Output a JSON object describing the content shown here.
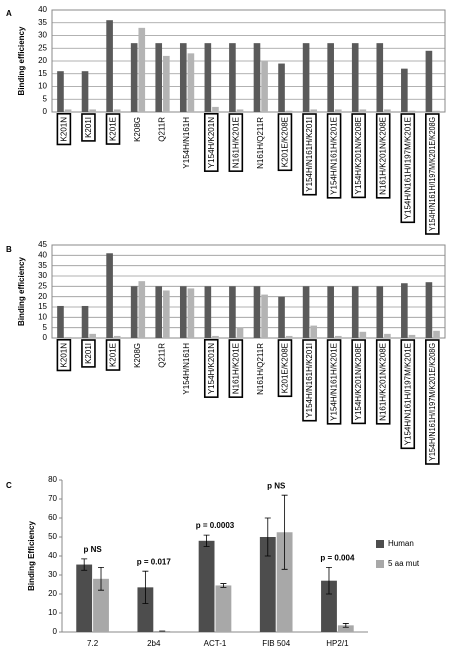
{
  "chart_data": [
    {
      "type": "bar",
      "panel_label": "A",
      "y_label": "Binding efficiency",
      "categories": [
        "K201N",
        "K201I",
        "K201E",
        "K208G",
        "Q211R",
        "Y154H/N161H",
        "Y154H/K201N",
        "N161H/K201E",
        "N161H/Q211R",
        "K201E/K208E",
        "Y154H/N161H/K201I",
        "Y154H/N161H/K201E",
        "Y154H/K201N/K208E",
        "N161H/K201N/K208E",
        "Y154H/N161H/I197M/K201E",
        "Y154H/N161H/I197M/K201E/K208G"
      ],
      "boxed": [
        true,
        true,
        true,
        false,
        false,
        false,
        true,
        true,
        false,
        true,
        true,
        true,
        true,
        true,
        true,
        true
      ],
      "series": [
        {
          "color": "#5a5a5a",
          "values": [
            16,
            16,
            36,
            27,
            27,
            27,
            27,
            27,
            27,
            19,
            27,
            27,
            27,
            27,
            17,
            24
          ]
        },
        {
          "color": "#b4b4b4",
          "values": [
            1,
            1,
            1,
            33,
            22,
            23,
            2,
            1,
            20,
            0.5,
            1,
            1,
            1,
            1,
            0.5,
            0.5
          ]
        }
      ],
      "ylim": [
        0,
        40
      ],
      "yticks": [
        0,
        5,
        10,
        15,
        20,
        25,
        30,
        35,
        40
      ],
      "grid": true
    },
    {
      "type": "bar",
      "panel_label": "B",
      "y_label": "Binding efficiency",
      "categories": [
        "K201N",
        "K201I",
        "K201E",
        "K208G",
        "Q211R",
        "Y154H/N161H",
        "Y154H/K201N",
        "N161H/K201E",
        "N161H/Q211R",
        "K201E/K208E",
        "Y154H/N161H/K201I",
        "Y154H/N161H/K201E",
        "Y154H/K201N/K208E",
        "N161H/K201N/K208E",
        "Y154H/N161H/I197M/K201E",
        "Y154H/N161H/I197M/K201E/K208G"
      ],
      "boxed": [
        true,
        true,
        true,
        false,
        false,
        false,
        true,
        true,
        false,
        true,
        true,
        true,
        true,
        true,
        true,
        true
      ],
      "series": [
        {
          "color": "#5a5a5a",
          "values": [
            15.5,
            15.5,
            41,
            25,
            25,
            25,
            25,
            25,
            25,
            20,
            25,
            25,
            25,
            25,
            26.5,
            27
          ]
        },
        {
          "color": "#b4b4b4",
          "values": [
            0.5,
            2,
            1,
            27.5,
            23,
            24,
            1,
            5,
            21,
            1,
            6,
            1,
            3,
            2,
            1.5,
            3.5
          ]
        }
      ],
      "ylim": [
        0,
        45
      ],
      "yticks": [
        0,
        5,
        10,
        15,
        20,
        25,
        30,
        35,
        40,
        45
      ],
      "grid": true
    },
    {
      "type": "bar",
      "panel_label": "C",
      "y_label": "Binding Efficiency",
      "categories": [
        "7.2",
        "2b4",
        "ACT-1",
        "FIB 504",
        "HP2/1"
      ],
      "series": [
        {
          "name": "Human",
          "color": "#4d4d4d",
          "values": [
            35.5,
            23.5,
            48,
            50,
            27
          ],
          "errors": [
            3,
            8.5,
            3,
            10,
            7
          ]
        },
        {
          "name": "5 aa mut",
          "color": "#a8a8a8",
          "values": [
            28,
            0.5,
            24.5,
            52.5,
            3.5
          ],
          "errors": [
            6,
            0,
            1,
            19.5,
            1
          ]
        }
      ],
      "annotations": [
        "p NS",
        "p = 0.017",
        "p = 0.0003",
        "p NS",
        "p = 0.004"
      ],
      "ylim": [
        0,
        80
      ],
      "yticks": [
        0,
        10,
        20,
        30,
        40,
        50,
        60,
        70,
        80
      ],
      "grid": false,
      "legend": "right"
    }
  ]
}
